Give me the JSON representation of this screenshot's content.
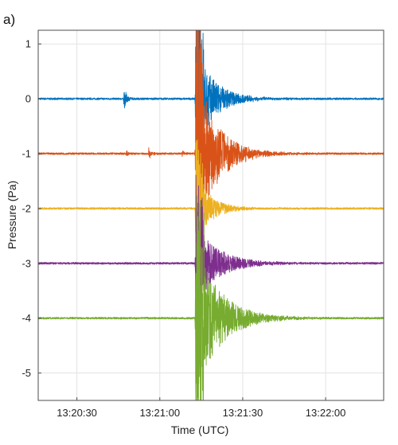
{
  "panel_label": "a)",
  "chart_data": {
    "type": "line",
    "title": "",
    "xlabel": "Time (UTC)",
    "ylabel": "Pressure (Pa)",
    "xlim": [
      "13:20:16",
      "13:22:21"
    ],
    "ylim": [
      -5.5,
      1.25
    ],
    "x_ticks": [
      "13:20:30",
      "13:21:00",
      "13:21:30",
      "13:22:00"
    ],
    "y_ticks": [
      1,
      0,
      -1,
      -2,
      -3,
      -4,
      -5
    ],
    "grid": true,
    "legend": "none",
    "series": [
      {
        "offset": 0,
        "color": "#0072BD",
        "events": [
          {
            "t": "13:20:47",
            "amp": 0.22,
            "dur": 3
          },
          {
            "t": "13:21:13",
            "amp": 0.95,
            "dur": 20
          }
        ]
      },
      {
        "offset": -1,
        "color": "#D95319",
        "events": [
          {
            "t": "13:20:48",
            "amp": 0.06,
            "dur": 2
          },
          {
            "t": "13:20:56",
            "amp": 0.1,
            "dur": 3
          },
          {
            "t": "13:21:08",
            "amp": 0.06,
            "dur": 3
          },
          {
            "t": "13:21:13",
            "amp": 1.6,
            "dur": 22
          }
        ]
      },
      {
        "offset": -2,
        "color": "#EDB120",
        "events": [
          {
            "t": "13:21:13",
            "amp": 0.65,
            "dur": 16
          }
        ]
      },
      {
        "offset": -3,
        "color": "#7E2F8E",
        "events": [
          {
            "t": "13:21:13",
            "amp": 0.75,
            "dur": 24
          }
        ]
      },
      {
        "offset": -4,
        "color": "#77AC30",
        "events": [
          {
            "t": "13:21:13",
            "amp": 1.4,
            "dur": 26
          }
        ]
      }
    ]
  }
}
